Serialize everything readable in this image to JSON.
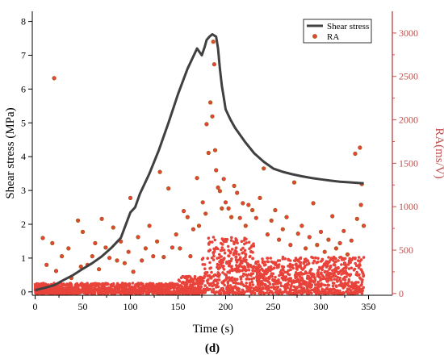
{
  "chart_data": {
    "type": "line+scatter",
    "xlabel": "Time (s)",
    "ylabel_left": "Shear stress (MPa)",
    "ylabel_right": "RA(ms/V)",
    "panel_label": "(d)",
    "x_ticks": [
      "0",
      "50",
      "100",
      "150",
      "200",
      "250",
      "300",
      "350"
    ],
    "y_left_ticks": [
      "0",
      "1",
      "2",
      "3",
      "4",
      "5",
      "6",
      "7",
      "8"
    ],
    "y_right_ticks": [
      "0",
      "500",
      "1000",
      "1500",
      "2000",
      "2500",
      "3000"
    ],
    "xlim": [
      -3,
      375
    ],
    "ylim_left": [
      -0.1,
      8.3
    ],
    "ylim_right": [
      -20,
      3250
    ],
    "legend": {
      "placement": "top-right",
      "entries": [
        {
          "label": "Shear stress",
          "kind": "line"
        },
        {
          "label": "RA",
          "kind": "marker"
        }
      ]
    },
    "colors": {
      "stress_line": "#404040",
      "ra_marker": "#e8433a",
      "ra_marker_edge": "#8a5a00",
      "right_axis": "#c0504d"
    },
    "series": [
      {
        "name": "Shear stress",
        "axis": "left",
        "x": [
          0,
          10,
          20,
          30,
          40,
          50,
          60,
          70,
          80,
          90,
          100,
          105,
          110,
          120,
          130,
          140,
          150,
          160,
          170,
          175,
          178,
          180,
          183,
          186,
          190,
          192,
          194,
          196,
          198,
          200,
          205,
          210,
          220,
          230,
          240,
          250,
          260,
          270,
          280,
          290,
          300,
          310,
          320,
          330,
          340,
          345
        ],
        "y": [
          0.05,
          0.12,
          0.2,
          0.35,
          0.5,
          0.68,
          0.85,
          1.05,
          1.3,
          1.6,
          2.35,
          2.5,
          2.9,
          3.5,
          4.2,
          5.0,
          5.85,
          6.6,
          7.2,
          7.0,
          7.25,
          7.45,
          7.55,
          7.62,
          7.55,
          7.2,
          6.6,
          6.1,
          5.75,
          5.4,
          5.1,
          4.85,
          4.45,
          4.1,
          3.85,
          3.65,
          3.55,
          3.48,
          3.42,
          3.37,
          3.33,
          3.29,
          3.26,
          3.24,
          3.22,
          3.21
        ]
      },
      {
        "name": "RA",
        "axis": "right",
        "points": [
          [
            8,
            640
          ],
          [
            12,
            330
          ],
          [
            18,
            580
          ],
          [
            20,
            2480
          ],
          [
            22,
            260
          ],
          [
            28,
            430
          ],
          [
            35,
            520
          ],
          [
            38,
            180
          ],
          [
            45,
            840
          ],
          [
            48,
            310
          ],
          [
            50,
            710
          ],
          [
            55,
            330
          ],
          [
            60,
            430
          ],
          [
            63,
            580
          ],
          [
            67,
            280
          ],
          [
            70,
            860
          ],
          [
            74,
            530
          ],
          [
            78,
            410
          ],
          [
            82,
            760
          ],
          [
            86,
            380
          ],
          [
            90,
            600
          ],
          [
            94,
            350
          ],
          [
            98,
            480
          ],
          [
            100,
            1100
          ],
          [
            103,
            250
          ],
          [
            108,
            650
          ],
          [
            112,
            380
          ],
          [
            116,
            520
          ],
          [
            120,
            780
          ],
          [
            124,
            430
          ],
          [
            128,
            600
          ],
          [
            131,
            1400
          ],
          [
            135,
            420
          ],
          [
            140,
            1210
          ],
          [
            144,
            530
          ],
          [
            148,
            680
          ],
          [
            152,
            520
          ],
          [
            156,
            950
          ],
          [
            160,
            880
          ],
          [
            163,
            430
          ],
          [
            166,
            740
          ],
          [
            170,
            1330
          ],
          [
            172,
            780
          ],
          [
            176,
            1050
          ],
          [
            179,
            920
          ],
          [
            180,
            1950
          ],
          [
            182,
            1620
          ],
          [
            184,
            2200
          ],
          [
            186,
            2040
          ],
          [
            187,
            2900
          ],
          [
            188,
            2640
          ],
          [
            189,
            1650
          ],
          [
            190,
            1420
          ],
          [
            192,
            1220
          ],
          [
            194,
            1180
          ],
          [
            196,
            980
          ],
          [
            198,
            1320
          ],
          [
            200,
            1050
          ],
          [
            203,
            980
          ],
          [
            206,
            880
          ],
          [
            209,
            1240
          ],
          [
            212,
            1160
          ],
          [
            215,
            870
          ],
          [
            218,
            1040
          ],
          [
            221,
            780
          ],
          [
            224,
            1020
          ],
          [
            228,
            960
          ],
          [
            232,
            870
          ],
          [
            236,
            1100
          ],
          [
            240,
            1440
          ],
          [
            244,
            680
          ],
          [
            248,
            840
          ],
          [
            252,
            960
          ],
          [
            256,
            620
          ],
          [
            260,
            740
          ],
          [
            264,
            880
          ],
          [
            268,
            560
          ],
          [
            272,
            1280
          ],
          [
            276,
            690
          ],
          [
            280,
            780
          ],
          [
            284,
            520
          ],
          [
            288,
            650
          ],
          [
            292,
            1040
          ],
          [
            296,
            560
          ],
          [
            300,
            710
          ],
          [
            304,
            480
          ],
          [
            308,
            620
          ],
          [
            312,
            890
          ],
          [
            316,
            520
          ],
          [
            320,
            580
          ],
          [
            324,
            720
          ],
          [
            328,
            450
          ],
          [
            332,
            610
          ],
          [
            336,
            1610
          ],
          [
            338,
            860
          ],
          [
            341,
            1680
          ],
          [
            342,
            1020
          ],
          [
            343,
            1260
          ],
          [
            345,
            780
          ]
        ]
      }
    ]
  }
}
